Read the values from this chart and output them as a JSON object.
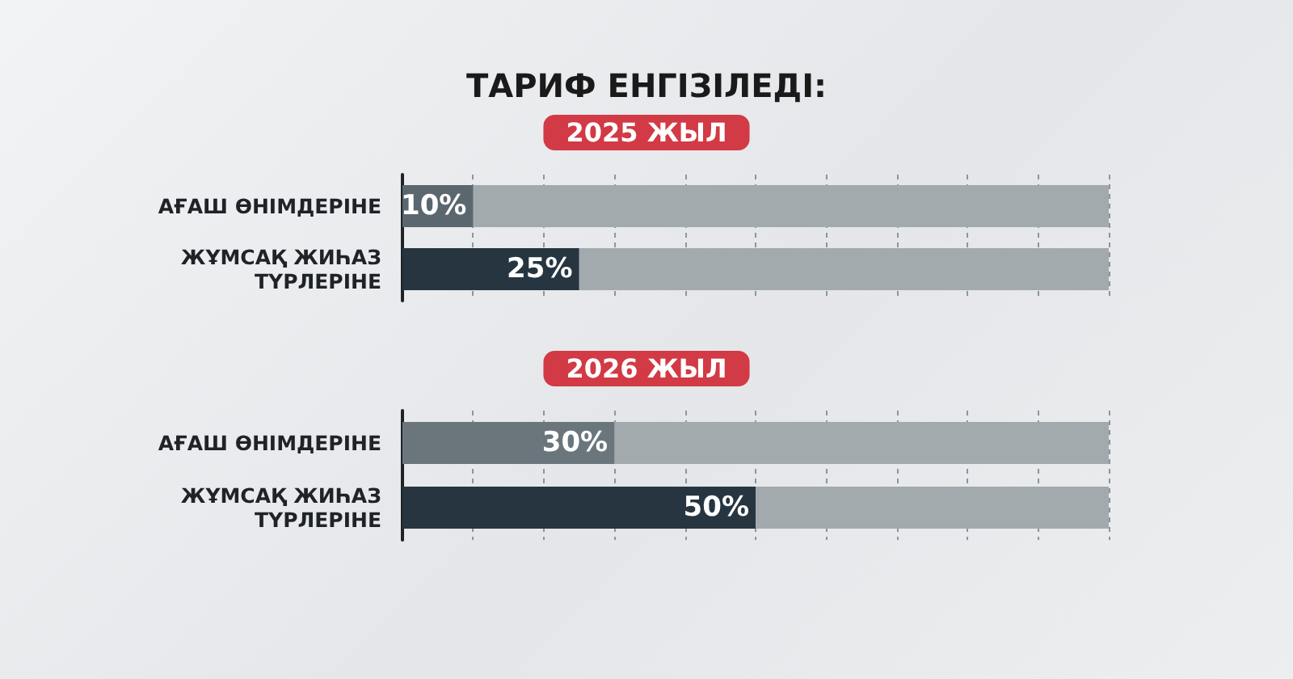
{
  "chart_data": [
    {
      "type": "bar",
      "orientation": "horizontal",
      "title": "ТАРИФ ЕНГІЗІЛЕДІ:",
      "subtitle": "2025 ЖЫЛ",
      "categories": [
        "АҒАШ ӨНІМДЕРІНЕ",
        "ЖҰМСАҚ ЖИҺАЗ ТҮРЛЕРІНЕ"
      ],
      "values": [
        10,
        25
      ],
      "colors": [
        "#5b676e",
        "#263540"
      ],
      "value_labels": [
        "10%",
        "25%"
      ],
      "xlim": [
        0,
        100
      ],
      "xticks": [
        0,
        10,
        20,
        30,
        40,
        50,
        60,
        70,
        80,
        90,
        100
      ],
      "grid": "x",
      "tick_labels": "y"
    },
    {
      "type": "bar",
      "orientation": "horizontal",
      "subtitle": "2026 ЖЫЛ",
      "categories": [
        "АҒАШ ӨНІМДЕРІНЕ",
        "ЖҰМСАҚ ЖИҺАЗ ТҮРЛЕРІНЕ"
      ],
      "values": [
        30,
        50
      ],
      "colors": [
        "#6a767c",
        "#263540"
      ],
      "value_labels": [
        "30%",
        "50%"
      ],
      "xlim": [
        0,
        100
      ],
      "xticks": [
        0,
        10,
        20,
        30,
        40,
        50,
        60,
        70,
        80,
        90,
        100
      ],
      "grid": "x",
      "tick_labels": "y"
    }
  ]
}
